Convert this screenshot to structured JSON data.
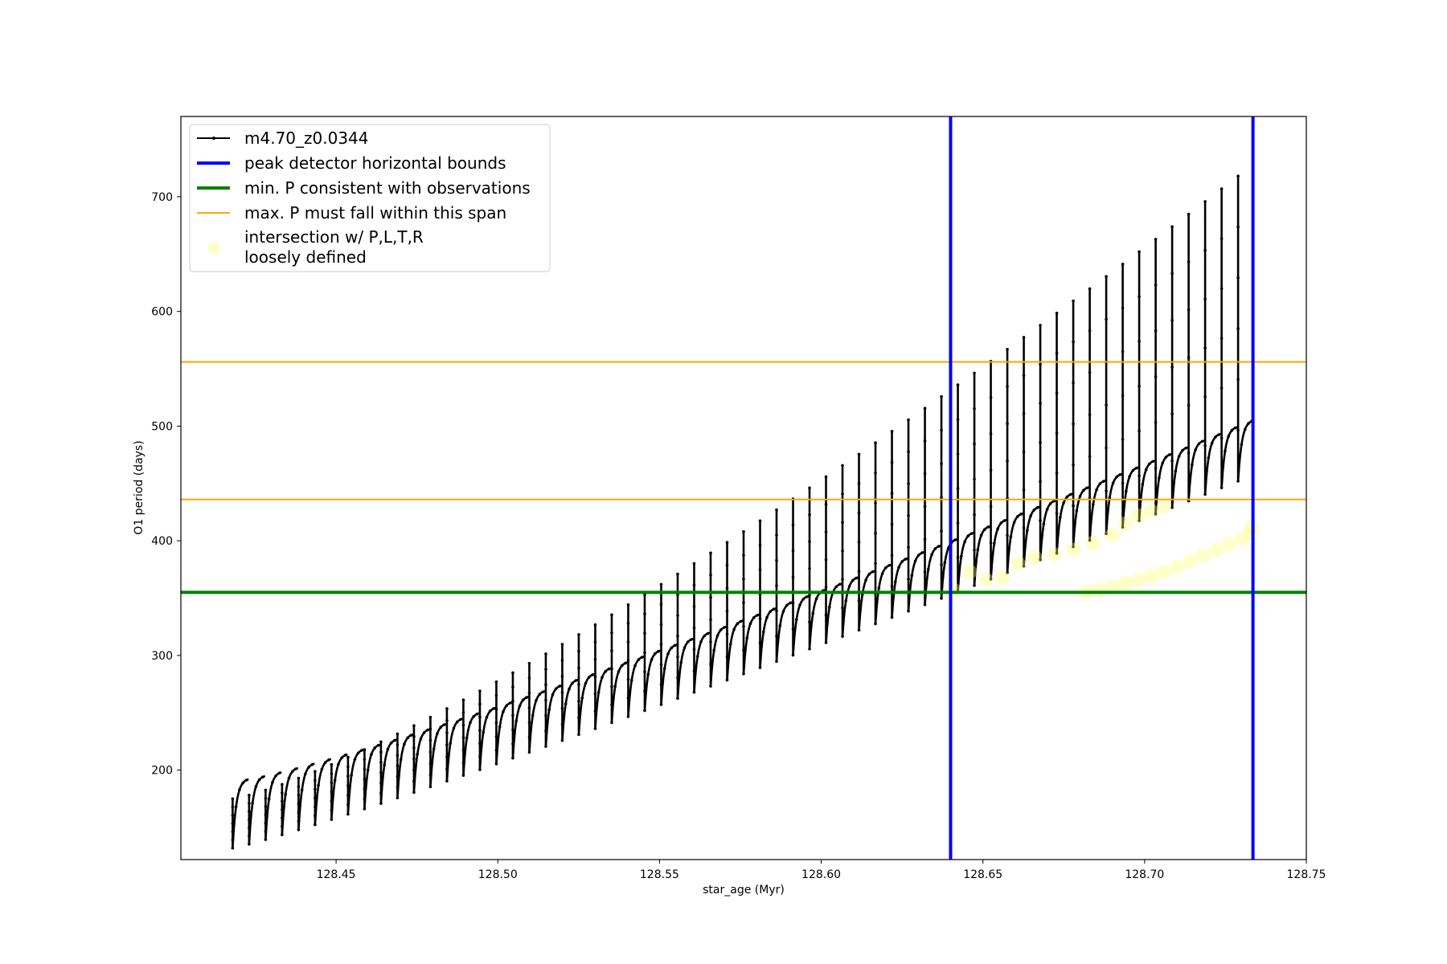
{
  "chart_data": {
    "type": "line",
    "title": "",
    "xlabel": "star_age (Myr)",
    "ylabel": "O1 period (days)",
    "xlim": [
      128.402,
      128.75
    ],
    "ylim": [
      122,
      770
    ],
    "x_ticks": [
      "128.45",
      "128.50",
      "128.55",
      "128.60",
      "128.65",
      "128.70",
      "128.75"
    ],
    "y_ticks": [
      "200",
      "300",
      "400",
      "500",
      "600",
      "700"
    ],
    "x_tick_values": [
      128.45,
      128.5,
      128.55,
      128.6,
      128.65,
      128.7,
      128.75
    ],
    "y_tick_values": [
      200,
      300,
      400,
      500,
      600,
      700
    ],
    "grid": false,
    "legend_position": "top-left",
    "legend": [
      "m4.70_z0.0344",
      "peak detector horizontal bounds",
      "min. P consistent with observations",
      "max. P must fall within this span",
      "intersection w/ P,L,T,R",
      "loosely defined"
    ],
    "series": [
      {
        "name": "m4.70_z0.0344",
        "color": "#000000",
        "style": "line with small point markers",
        "description_points": {
          "x_start": 128.418,
          "x_end": 128.734,
          "pulse_count": 62,
          "envelope_top_start": 192,
          "envelope_top_end": 505,
          "spike_top_start": 175,
          "spike_top_end": 718,
          "trough_start": 132,
          "trough_end": 452
        }
      },
      {
        "name": "peak detector horizontal bounds",
        "color": "#0000ff",
        "type": "vline",
        "x": [
          128.64,
          128.7335
        ]
      },
      {
        "name": "min. P consistent with observations",
        "color": "#008000",
        "type": "hline",
        "y": [
          355
        ]
      },
      {
        "name": "max. P must fall within this span",
        "color": "#ffa500",
        "type": "hline",
        "y": [
          436,
          556
        ]
      },
      {
        "name": "intersection w/ P,L,T,R",
        "color": "#ffff66",
        "type": "scatter",
        "points": [
          [
            128.641,
            357
          ],
          [
            128.646,
            373
          ],
          [
            128.651,
            366
          ],
          [
            128.656,
            368
          ],
          [
            128.661,
            380
          ],
          [
            128.666,
            386
          ],
          [
            128.672,
            388
          ],
          [
            128.678,
            392
          ],
          [
            128.684,
            398
          ],
          [
            128.69,
            405
          ],
          [
            128.694,
            415
          ],
          [
            128.698,
            422
          ],
          [
            128.702,
            426
          ],
          [
            128.706,
            430
          ],
          [
            128.682,
            355
          ],
          [
            128.686,
            357
          ],
          [
            128.69,
            360
          ],
          [
            128.694,
            363
          ],
          [
            128.698,
            366
          ],
          [
            128.702,
            369
          ],
          [
            128.706,
            373
          ],
          [
            128.71,
            377
          ],
          [
            128.714,
            382
          ],
          [
            128.718,
            387
          ],
          [
            128.722,
            392
          ],
          [
            128.726,
            397
          ],
          [
            128.73,
            402
          ],
          [
            128.733,
            406
          ],
          [
            128.733,
            412
          ]
        ]
      }
    ]
  }
}
